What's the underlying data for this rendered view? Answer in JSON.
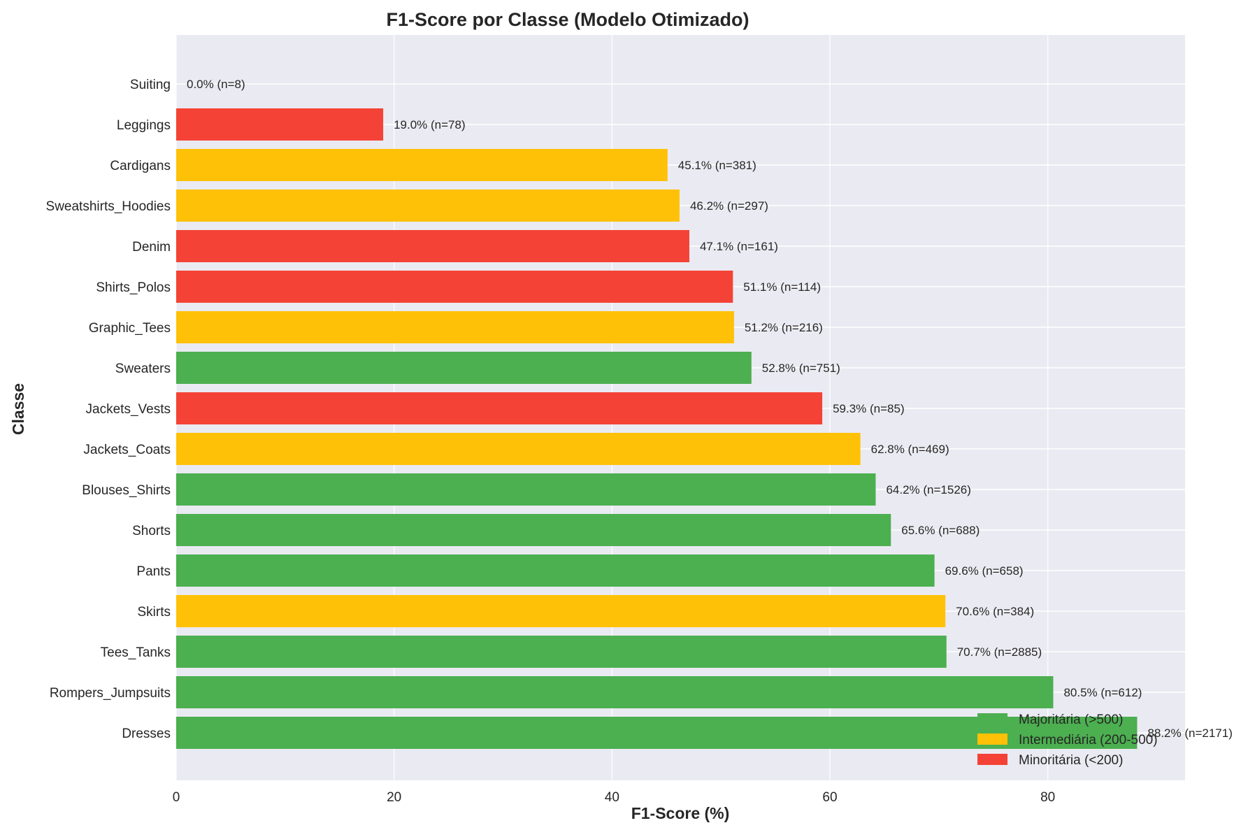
{
  "chart_data": {
    "type": "bar",
    "orientation": "horizontal",
    "title": "F1-Score por Classe (Modelo Otimizado)",
    "xlabel": "F1-Score (%)",
    "ylabel": "Classe",
    "xlim": [
      0,
      92.6
    ],
    "xticks": [
      0,
      20,
      40,
      60,
      80
    ],
    "grid": true,
    "legend_position": "bottom-right",
    "categories": [
      "Suiting",
      "Leggings",
      "Cardigans",
      "Sweatshirts_Hoodies",
      "Denim",
      "Shirts_Polos",
      "Graphic_Tees",
      "Sweaters",
      "Jackets_Vests",
      "Jackets_Coats",
      "Blouses_Shirts",
      "Shorts",
      "Pants",
      "Skirts",
      "Tees_Tanks",
      "Rompers_Jumpsuits",
      "Dresses"
    ],
    "values": [
      0.0,
      19.0,
      45.1,
      46.2,
      47.1,
      51.1,
      51.2,
      52.8,
      59.3,
      62.8,
      64.2,
      65.6,
      69.6,
      70.6,
      70.7,
      80.5,
      88.2
    ],
    "groups": [
      "min",
      "min",
      "int",
      "int",
      "min",
      "min",
      "int",
      "maj",
      "min",
      "int",
      "maj",
      "maj",
      "maj",
      "int",
      "maj",
      "maj",
      "maj"
    ],
    "data_labels": [
      "0.0% (n=8)",
      "19.0% (n=78)",
      "45.1% (n=381)",
      "46.2% (n=297)",
      "47.1% (n=161)",
      "51.1% (n=114)",
      "51.2% (n=216)",
      "52.8% (n=751)",
      "59.3% (n=85)",
      "62.8% (n=469)",
      "64.2% (n=1526)",
      "65.6% (n=688)",
      "69.6% (n=658)",
      "70.6% (n=384)",
      "70.7% (n=2885)",
      "80.5% (n=612)",
      "88.2% (n=2171)"
    ],
    "legend": [
      {
        "key": "maj",
        "label": "Majoritária (>500)",
        "color": "#4caf50"
      },
      {
        "key": "int",
        "label": "Intermediária (200-500)",
        "color": "#ffc107"
      },
      {
        "key": "min",
        "label": "Minoritária (<200)",
        "color": "#f44336"
      }
    ],
    "plot_background": "#eaeaf2"
  }
}
